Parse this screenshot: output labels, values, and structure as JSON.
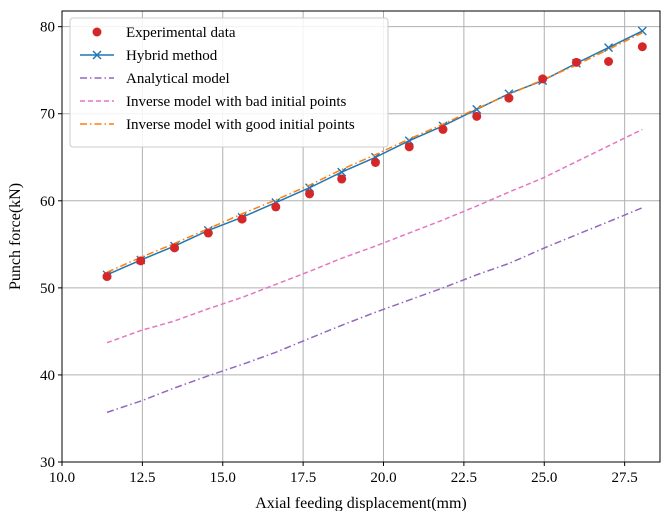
{
  "chart_data": {
    "type": "line",
    "title": "",
    "xlabel": "Axial feeding displacement(mm)",
    "ylabel": "Punch force(kN)",
    "xlim": [
      10.0,
      28.6
    ],
    "ylim": [
      30,
      81.8
    ],
    "grid": true,
    "legend_position": "top-left",
    "x_ticks": [
      10.0,
      12.5,
      15.0,
      17.5,
      20.0,
      22.5,
      25.0,
      27.5
    ],
    "x_tick_labels": [
      "10.0",
      "12.5",
      "15.0",
      "17.5",
      "20.0",
      "22.5",
      "25.0",
      "27.5"
    ],
    "y_ticks": [
      30,
      40,
      50,
      60,
      70,
      80
    ],
    "y_tick_labels": [
      "30",
      "40",
      "50",
      "60",
      "70",
      "80"
    ],
    "x": [
      11.4,
      12.45,
      13.5,
      14.55,
      15.6,
      16.65,
      17.7,
      18.7,
      19.75,
      20.8,
      21.85,
      22.9,
      23.9,
      24.95,
      26.0,
      27.0,
      28.05
    ],
    "series": [
      {
        "name": "Experimental data",
        "style": "markers",
        "marker": "circle",
        "color": "#d62728",
        "values": [
          51.3,
          53.1,
          54.6,
          56.3,
          57.9,
          59.3,
          60.8,
          62.5,
          64.4,
          66.2,
          68.2,
          69.7,
          71.8,
          74.0,
          75.9,
          76.0,
          77.7
        ]
      },
      {
        "name": "Hybrid method",
        "style": "solid",
        "marker": "x",
        "color": "#1f77b4",
        "values": [
          51.5,
          53.2,
          54.8,
          56.6,
          58.1,
          59.8,
          61.5,
          63.3,
          65.0,
          66.9,
          68.6,
          70.5,
          72.3,
          73.8,
          75.8,
          77.6,
          79.5
        ]
      },
      {
        "name": "Analytical model",
        "style": "dashdot",
        "color": "#9467bd",
        "values": [
          35.7,
          37.0,
          38.5,
          39.9,
          41.2,
          42.6,
          44.2,
          45.7,
          47.2,
          48.6,
          50.0,
          51.5,
          52.8,
          54.5,
          56.1,
          57.6,
          59.2
        ]
      },
      {
        "name": "Inverse model with bad initial points",
        "style": "dashed",
        "color": "#e377c2",
        "values": [
          43.7,
          45.1,
          46.2,
          47.6,
          48.9,
          50.4,
          51.9,
          53.4,
          54.8,
          56.3,
          57.8,
          59.4,
          61.0,
          62.6,
          64.5,
          66.3,
          68.2
        ]
      },
      {
        "name": "Inverse model with good initial points",
        "style": "dashdot",
        "color": "#ff7f0e",
        "values": [
          51.8,
          53.5,
          55.1,
          56.8,
          58.5,
          60.1,
          61.8,
          63.6,
          65.3,
          67.1,
          68.8,
          70.6,
          72.2,
          73.9,
          75.6,
          77.4,
          79.3
        ]
      }
    ]
  }
}
